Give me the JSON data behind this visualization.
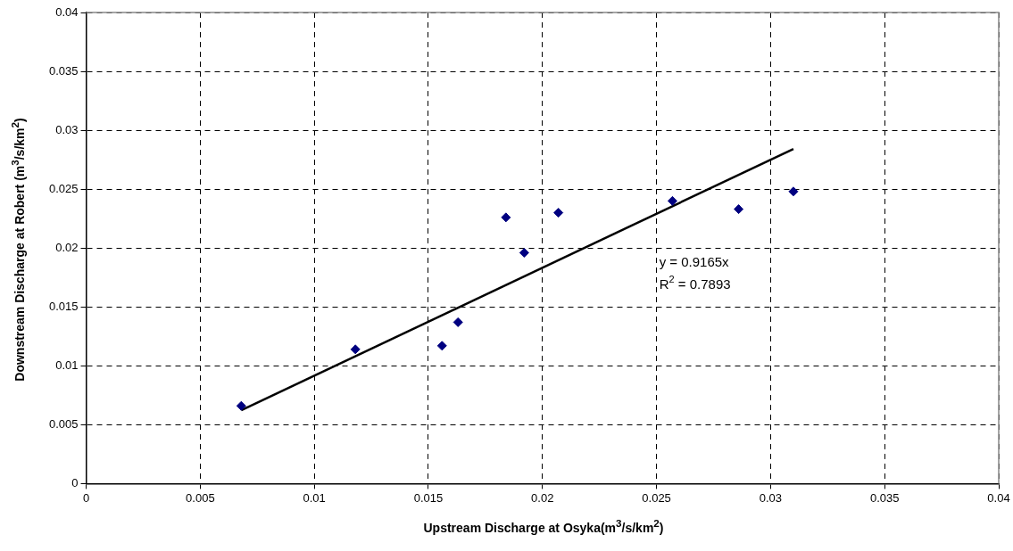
{
  "chart_data": {
    "type": "scatter",
    "xlabel": "Upstream Discharge at Osyka(m$^{3}$/s/km$^{2}$)",
    "ylabel": "Downstream Discharge at Robert (m$^{3}$/s/km$^{2}$)",
    "xlim": [
      0,
      0.04
    ],
    "xticks": [
      0,
      0.005,
      0.01,
      0.015,
      0.02,
      0.025,
      0.03,
      0.035,
      0.04
    ],
    "ylim": [
      0,
      0.04
    ],
    "yticks": [
      0,
      0.005,
      0.01,
      0.015,
      0.02,
      0.025,
      0.03,
      0.035,
      0.04
    ],
    "grid": true,
    "legend": false,
    "marker": "diamond",
    "annotations": [
      "y = 0.9165x",
      "R$^{2}$ = 0.7893"
    ],
    "series": [
      {
        "color": "#000080",
        "x": [
          0.0068,
          0.0118,
          0.0156,
          0.0163,
          0.0184,
          0.0192,
          0.0207,
          0.0257,
          0.0286,
          0.031
        ],
        "values": [
          0.0066,
          0.0114,
          0.0117,
          0.0137,
          0.0226,
          0.0196,
          0.023,
          0.024,
          0.0233,
          0.0248
        ]
      },
      {
        "type": "line",
        "color": "#000000",
        "marker": "none",
        "line_style": "solid",
        "x": [
          0.0068,
          0.031
        ],
        "values": [
          0.00623,
          0.02841
        ]
      }
    ]
  }
}
